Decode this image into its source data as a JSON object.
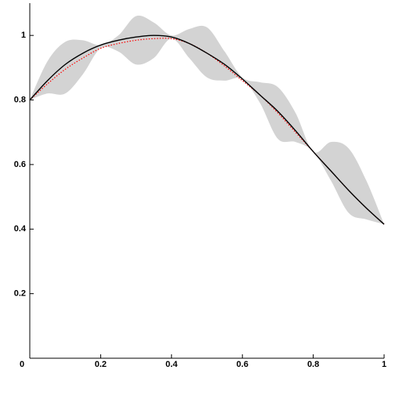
{
  "chart_data": {
    "type": "line",
    "x": [
      0,
      0.05,
      0.1,
      0.15,
      0.2,
      0.25,
      0.3,
      0.35,
      0.4,
      0.45,
      0.5,
      0.55,
      0.6,
      0.65,
      0.7,
      0.75,
      0.8,
      0.85,
      0.9,
      0.95,
      1
    ],
    "band": {
      "color": "#d3d3d3",
      "upper": [
        0.8,
        0.92,
        0.98,
        0.985,
        0.97,
        1.0,
        1.06,
        1.04,
        1.0,
        1.02,
        1.025,
        0.95,
        0.87,
        0.855,
        0.84,
        0.76,
        0.64,
        0.67,
        0.65,
        0.55,
        0.415
      ],
      "lower": [
        0.8,
        0.82,
        0.82,
        0.88,
        0.96,
        0.95,
        0.91,
        0.93,
        0.99,
        0.93,
        0.87,
        0.86,
        0.865,
        0.79,
        0.68,
        0.67,
        0.64,
        0.55,
        0.45,
        0.43,
        0.415
      ]
    },
    "series": [
      {
        "color": "#ff0000",
        "dotted": true,
        "values": [
          0.8,
          0.85,
          0.895,
          0.93,
          0.96,
          0.975,
          0.985,
          0.99,
          0.99,
          0.975,
          0.945,
          0.905,
          0.86,
          0.815,
          0.76,
          0.7,
          0.64,
          0.58,
          0.52,
          0.465,
          0.415
        ]
      },
      {
        "color": "#000000",
        "dotted": false,
        "values": [
          0.8,
          0.86,
          0.91,
          0.945,
          0.97,
          0.985,
          0.995,
          1.0,
          0.995,
          0.975,
          0.945,
          0.91,
          0.865,
          0.815,
          0.765,
          0.705,
          0.64,
          0.58,
          0.52,
          0.465,
          0.415
        ]
      }
    ],
    "xlim": [
      0,
      1
    ],
    "ylim": [
      0,
      1.1
    ],
    "xticks": [
      0,
      0.2,
      0.4,
      0.6,
      0.8,
      1
    ],
    "yticks": [
      0.2,
      0.4,
      0.6,
      0.8,
      1
    ]
  }
}
